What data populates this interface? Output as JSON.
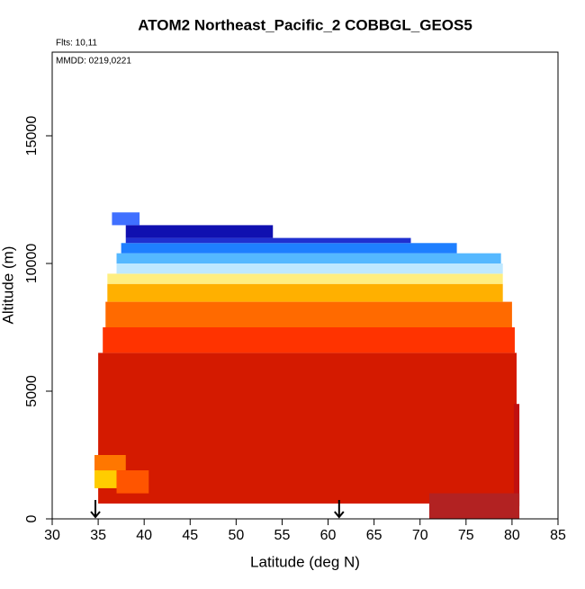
{
  "chart_data": {
    "type": "curtain",
    "title": "ATOM2 Northeast_Pacific_2 COBBGL_GEOS5",
    "annotations": [
      "Flts: 10,11",
      "MMDD: 0219,0221"
    ],
    "xlabel": "Latitude (deg N)",
    "ylabel": "Altitude (m)",
    "xlim": [
      30,
      85
    ],
    "ylim": [
      0,
      18275
    ],
    "xticks": [
      30,
      35,
      40,
      45,
      50,
      55,
      60,
      65,
      70,
      75,
      80,
      85
    ],
    "yticks": [
      0,
      5000,
      10000,
      15000
    ],
    "arrows": [
      34.7,
      61.2
    ],
    "cells": [
      {
        "x": [
          35,
          80.5
        ],
        "y": [
          600,
          6500
        ],
        "color": "#d41a00"
      },
      {
        "x": [
          80.2,
          80.8
        ],
        "y": [
          500,
          4500
        ],
        "color": "#c01010"
      },
      {
        "x": [
          71,
          80.8
        ],
        "y": [
          0,
          1000
        ],
        "color": "#b22222"
      },
      {
        "x": [
          34.6,
          37
        ],
        "y": [
          1200,
          1900
        ],
        "color": "#ffcc00"
      },
      {
        "x": [
          34.6,
          38
        ],
        "y": [
          1900,
          2500
        ],
        "color": "#ff7700"
      },
      {
        "x": [
          37,
          40.5
        ],
        "y": [
          1000,
          1900
        ],
        "color": "#ff5500"
      },
      {
        "x": [
          35.5,
          80.3
        ],
        "y": [
          6500,
          7500
        ],
        "color": "#ff3300"
      },
      {
        "x": [
          35.8,
          80
        ],
        "y": [
          7500,
          8500
        ],
        "color": "#ff6a00"
      },
      {
        "x": [
          36,
          79
        ],
        "y": [
          8500,
          9200
        ],
        "color": "#ffb000"
      },
      {
        "x": [
          36,
          79
        ],
        "y": [
          9200,
          9600
        ],
        "color": "#ffee80"
      },
      {
        "x": [
          37,
          79
        ],
        "y": [
          9600,
          10000
        ],
        "color": "#bfe8ff"
      },
      {
        "x": [
          37,
          78.8
        ],
        "y": [
          10000,
          10400
        ],
        "color": "#55b8ff"
      },
      {
        "x": [
          37.5,
          74
        ],
        "y": [
          10400,
          10800
        ],
        "color": "#1e7fff"
      },
      {
        "x": [
          38,
          69
        ],
        "y": [
          10800,
          11000
        ],
        "color": "#2030d0"
      },
      {
        "x": [
          38,
          54
        ],
        "y": [
          11000,
          11500
        ],
        "color": "#1010b0"
      },
      {
        "x": [
          36.5,
          39.5
        ],
        "y": [
          11500,
          12000
        ],
        "color": "#4070ff"
      }
    ]
  }
}
